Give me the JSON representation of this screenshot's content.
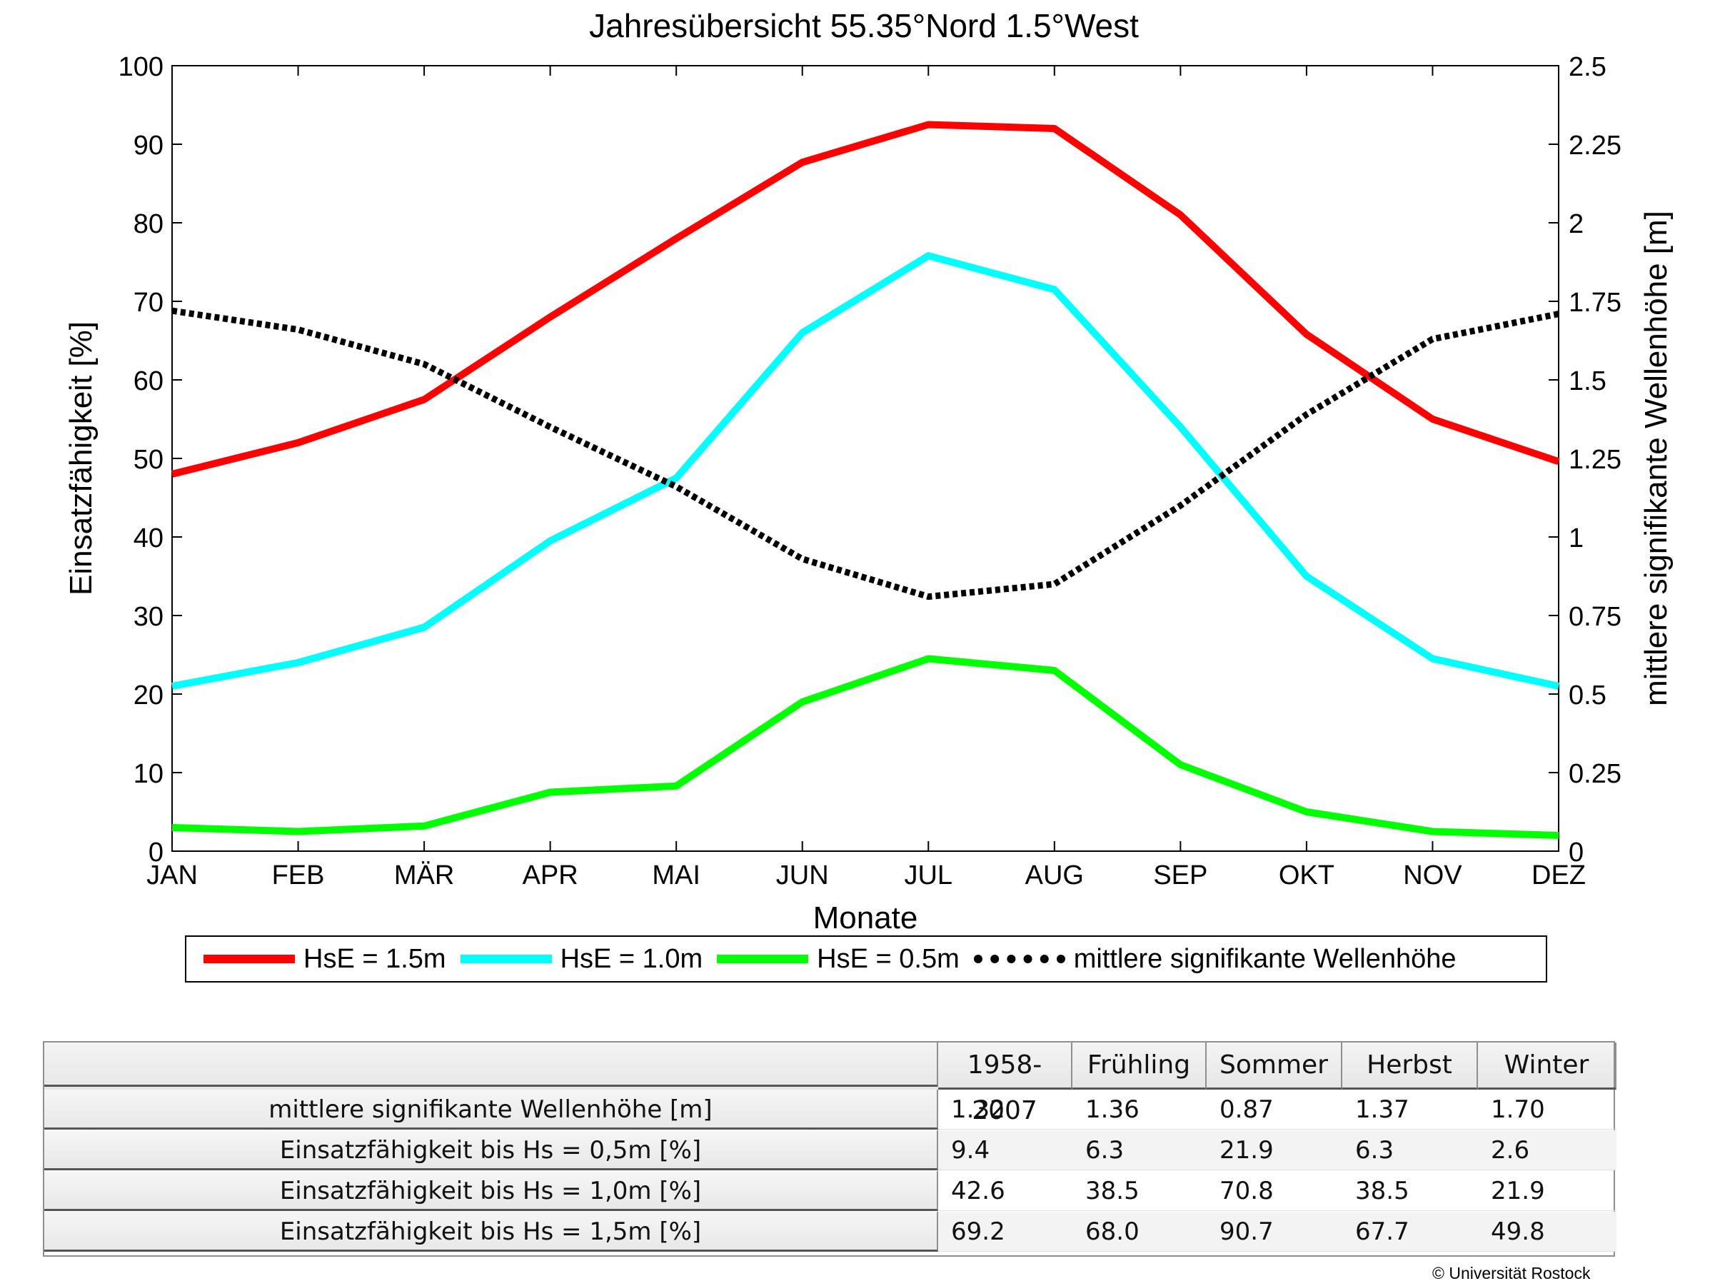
{
  "chart_data": {
    "type": "line",
    "title": "Jahresübersicht  55.35°Nord  1.5°West",
    "xlabel": "Monate",
    "ylabel": "Einsatzfähigkeit [%]",
    "y2label": "mittlere signifikante Wellenhöhe [m]",
    "categories": [
      "JAN",
      "FEB",
      "MÄR",
      "APR",
      "MAI",
      "JUN",
      "JUL",
      "AUG",
      "SEP",
      "OKT",
      "NOV",
      "DEZ"
    ],
    "ylim": [
      0,
      100
    ],
    "y2lim": [
      0,
      2.5
    ],
    "yticks": [
      "0",
      "10",
      "20",
      "30",
      "40",
      "50",
      "60",
      "70",
      "80",
      "90",
      "100"
    ],
    "y2ticks": [
      "0",
      "0.25",
      "0.5",
      "0.75",
      "1",
      "1.25",
      "1.5",
      "1.75",
      "2",
      "2.25",
      "2.5"
    ],
    "grid": false,
    "legend_position": "bottom",
    "series": [
      {
        "name": "HsE = 1.5m",
        "color": "#ff0000",
        "axis": "left",
        "style": "solid",
        "values": [
          48,
          52,
          57.5,
          68,
          78,
          87.7,
          92.5,
          92,
          81,
          65.8,
          55,
          49.6
        ]
      },
      {
        "name": "HsE = 1.0m",
        "color": "#00ffff",
        "axis": "left",
        "style": "solid",
        "values": [
          21,
          24,
          28.5,
          39.5,
          47.5,
          66,
          75.8,
          71.5,
          54,
          35,
          24.5,
          21
        ]
      },
      {
        "name": "HsE = 0.5m",
        "color": "#00ff00",
        "axis": "left",
        "style": "solid",
        "values": [
          3,
          2.5,
          3.2,
          7.5,
          8.3,
          19,
          24.5,
          23,
          11,
          5,
          2.5,
          2
        ]
      },
      {
        "name": "mittlere signifikante Wellenhöhe",
        "color": "#000000",
        "axis": "right",
        "style": "dotted",
        "values": [
          1.72,
          1.66,
          1.55,
          1.35,
          1.16,
          0.93,
          0.81,
          0.85,
          1.1,
          1.39,
          1.63,
          1.71
        ]
      }
    ]
  },
  "table": {
    "columns": [
      "1958-2007",
      "Frühling",
      "Sommer",
      "Herbst",
      "Winter"
    ],
    "rows": [
      {
        "label": "mittlere signifikante Wellenhöhe [m]",
        "values": [
          "1.32",
          "1.36",
          "0.87",
          "1.37",
          "1.70"
        ]
      },
      {
        "label": "Einsatzfähigkeit bis Hs = 0,5m [%]",
        "values": [
          "9.4",
          "6.3",
          "21.9",
          "6.3",
          "2.6"
        ]
      },
      {
        "label": "Einsatzfähigkeit bis Hs = 1,0m [%]",
        "values": [
          "42.6",
          "38.5",
          "70.8",
          "38.5",
          "21.9"
        ]
      },
      {
        "label": "Einsatzfähigkeit bis Hs = 1,5m [%]",
        "values": [
          "69.2",
          "68.0",
          "90.7",
          "67.7",
          "49.8"
        ]
      }
    ]
  },
  "copyright": "© Universität Rostock"
}
